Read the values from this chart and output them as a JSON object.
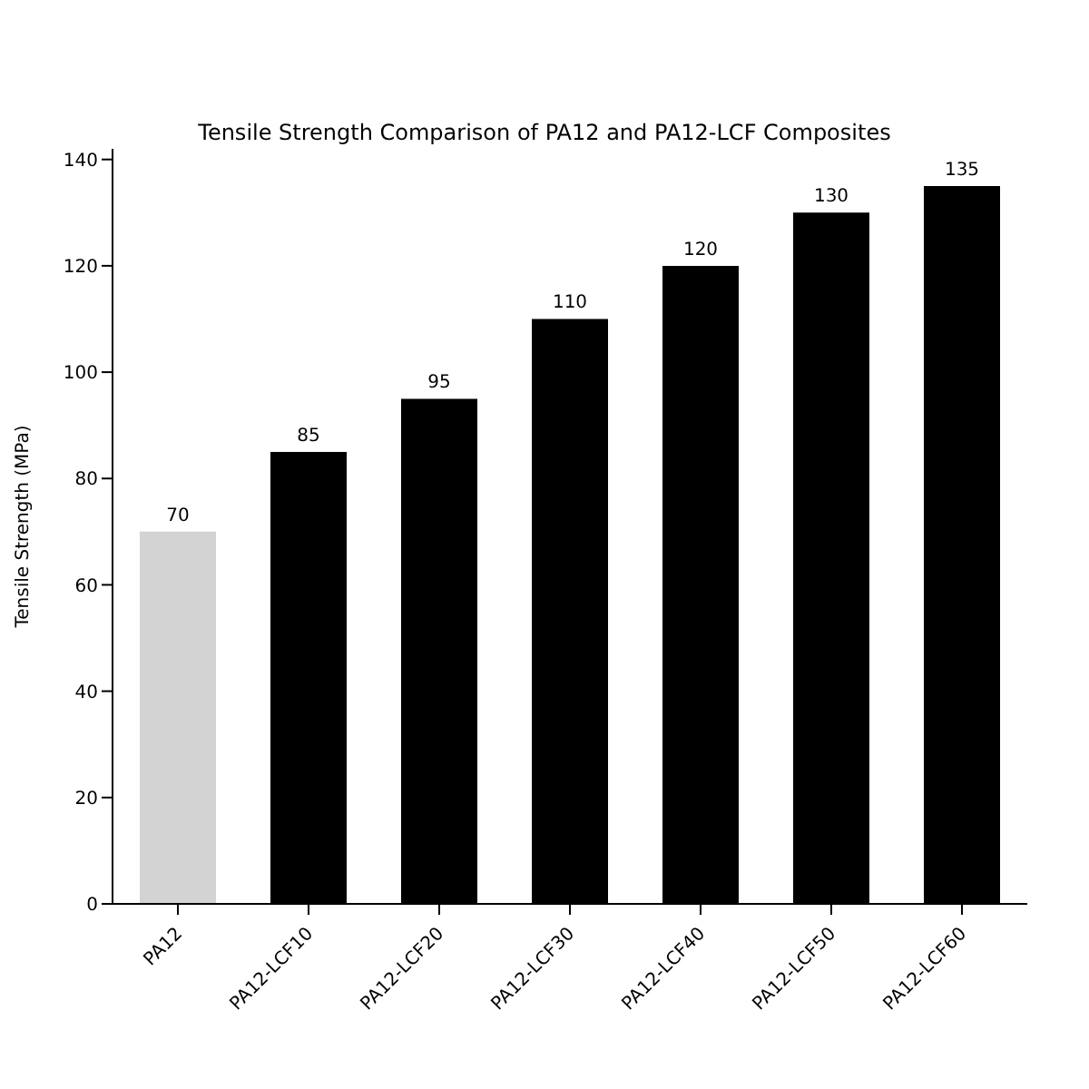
{
  "chart_data": {
    "type": "bar",
    "title": "Tensile Strength Comparison of PA12 and PA12-LCF Composites",
    "ylabel": "Tensile Strength (MPa)",
    "categories": [
      "PA12",
      "PA12-LCF10",
      "PA12-LCF20",
      "PA12-LCF30",
      "PA12-LCF40",
      "PA12-LCF50",
      "PA12-LCF60"
    ],
    "values": [
      70,
      85,
      95,
      110,
      120,
      130,
      135
    ],
    "colors": [
      "#d3d3d3",
      "#000000",
      "#000000",
      "#000000",
      "#000000",
      "#000000",
      "#000000"
    ],
    "ylim": [
      0,
      142
    ],
    "yticks": [
      0,
      20,
      40,
      60,
      80,
      100,
      120,
      140
    ],
    "data_labels": true,
    "grid": false
  }
}
